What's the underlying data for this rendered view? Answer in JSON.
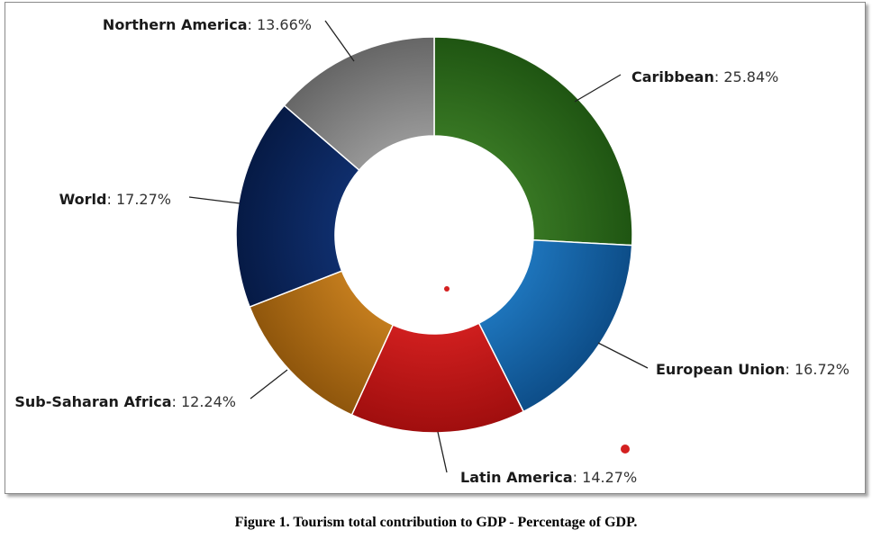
{
  "chart_data": {
    "type": "pie",
    "variant": "donut",
    "slices": [
      {
        "label": "Caribbean",
        "value": 25.84,
        "value_text": "25.84%",
        "color": "#3a7a25",
        "color_dark": "#1f5512"
      },
      {
        "label": "European Union",
        "value": 16.72,
        "value_text": "16.72%",
        "color": "#1f78c0",
        "color_dark": "#0d4d88"
      },
      {
        "label": "Latin America",
        "value": 14.27,
        "value_text": "14.27%",
        "color": "#d42020",
        "color_dark": "#a00e0e"
      },
      {
        "label": "Sub-Saharan Africa",
        "value": 12.24,
        "value_text": "12.24%",
        "color": "#c8801f",
        "color_dark": "#8f560c"
      },
      {
        "label": "World",
        "value": 17.27,
        "value_text": "17.27%",
        "color": "#103070",
        "color_dark": "#061a45"
      },
      {
        "label": "Northern America",
        "value": 13.66,
        "value_text": "13.66%",
        "color": "#9c9c9c",
        "color_dark": "#666666"
      }
    ],
    "legend": "none",
    "data_labels": "outside-with-leader-lines",
    "marker_color": "#d42020"
  },
  "caption": "Figure 1. Tourism total contribution to GDP - Percentage of GDP."
}
